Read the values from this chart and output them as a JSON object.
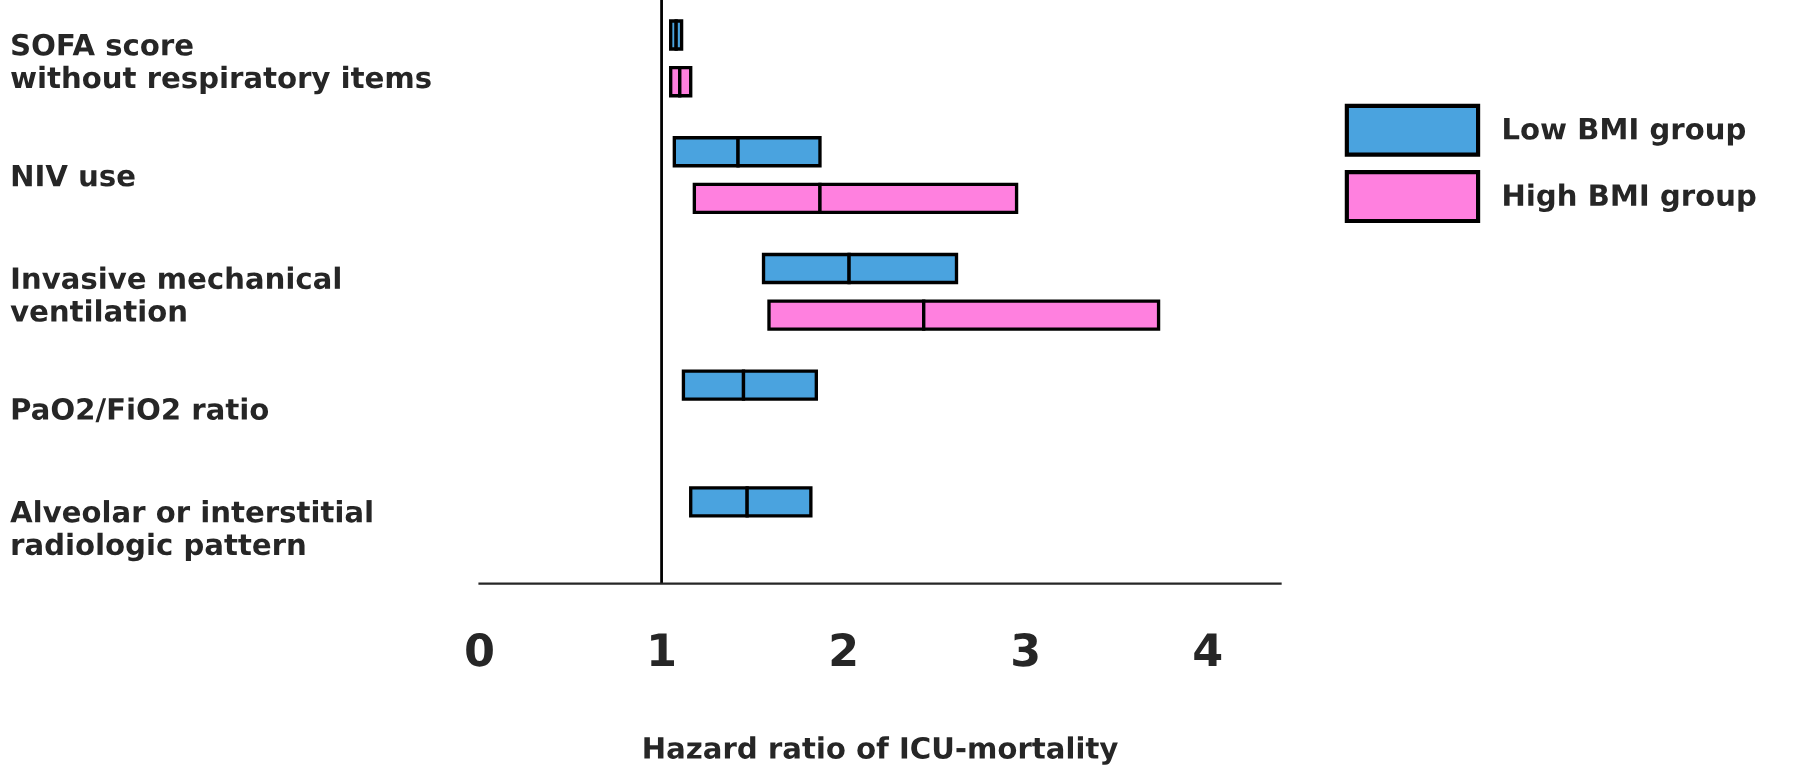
{
  "chart_data": {
    "type": "bar",
    "orientation": "horizontal",
    "categories": [
      "SOFA score\nwithout respiratory items",
      "NIV use",
      "Invasive mechanical\nventilation",
      "PaO2/FiO2 ratio",
      "Alveolar or interstitial\nradiologic pattern"
    ],
    "series": [
      {
        "name": "Low BMI group",
        "color": "#4aa3df",
        "base": [
          1.05,
          1.07,
          1.56,
          1.12,
          1.16
        ],
        "values": [
          0.03,
          0.35,
          0.47,
          0.33,
          0.31
        ]
      },
      {
        "color": "#4aa3df",
        "base": [
          1.08,
          1.42,
          2.03,
          1.45,
          1.47
        ],
        "values": [
          0.03,
          0.45,
          0.59,
          0.4,
          0.35
        ]
      },
      {
        "name": "High BMI group",
        "color": "#ff80df",
        "base": [
          1.05,
          1.18,
          1.59,
          null,
          null
        ],
        "values": [
          0.05,
          0.69,
          0.85,
          null,
          null
        ]
      },
      {
        "color": "#ff80df",
        "base": [
          1.1,
          1.87,
          2.44,
          null,
          null
        ],
        "values": [
          0.06,
          1.08,
          1.29,
          null,
          null
        ]
      }
    ],
    "xlim": [
      0,
      4.4
    ],
    "xticks": [
      0,
      1,
      2,
      3,
      4
    ],
    "xlabel": "Hazard ratio of ICU-mortality",
    "ref_lines": [
      {
        "axis": "x",
        "value": 1,
        "color": "#000000"
      }
    ],
    "legend": "right"
  }
}
